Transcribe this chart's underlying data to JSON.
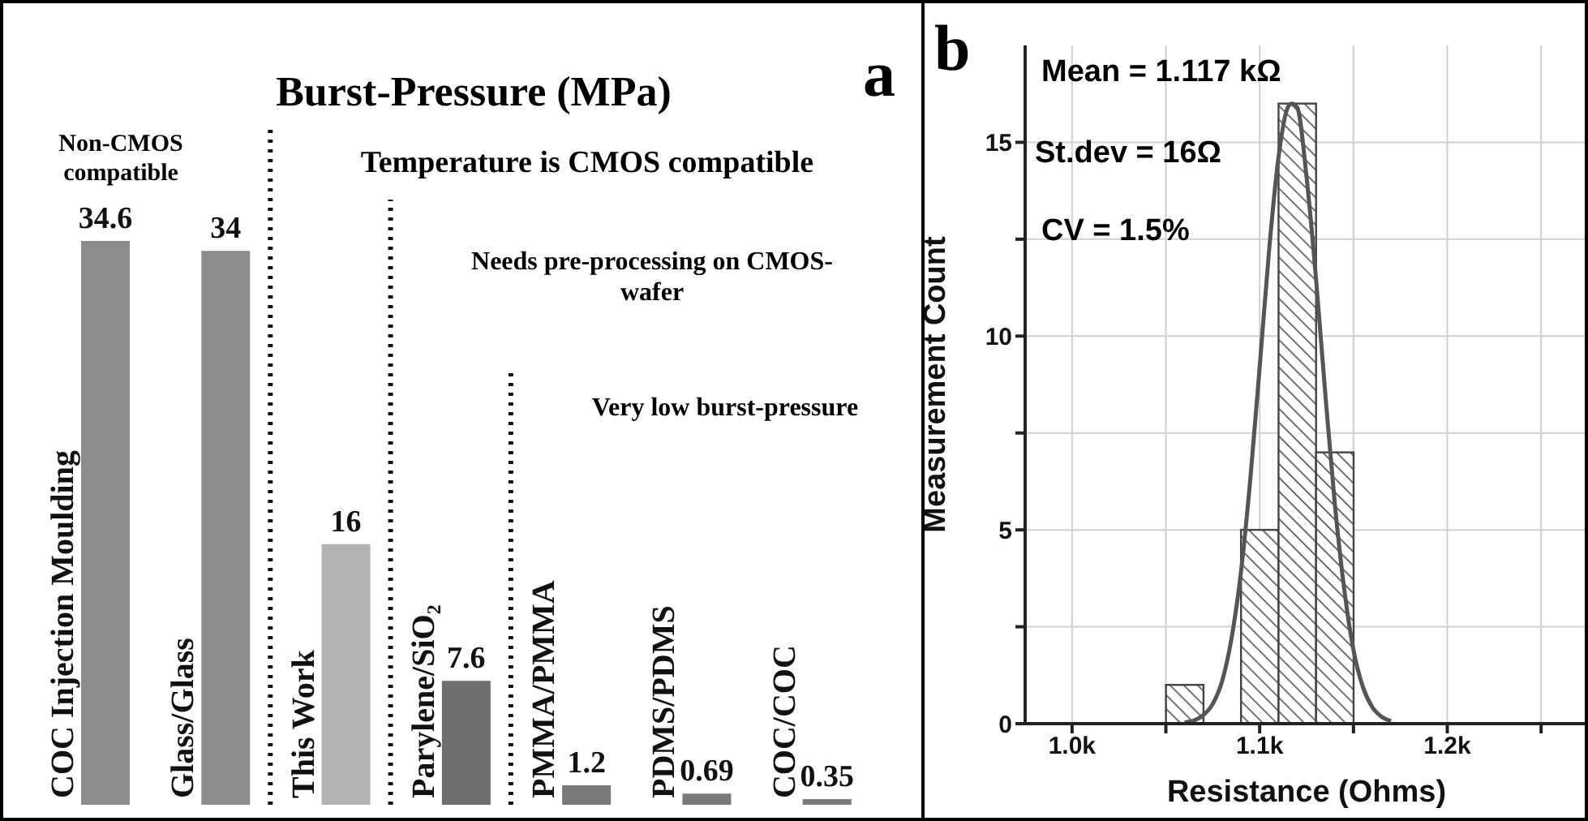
{
  "chart_data": [
    {
      "type": "bar",
      "title": "Burst-Pressure (MPa)",
      "categories": [
        "COC Injection Moulding",
        "Glass/Glass",
        "This Work",
        "Parylene/SiO₂",
        "PMMA/PMMA",
        "PDMS/PDMS",
        "COC/COC"
      ],
      "values": [
        34.6,
        34,
        16,
        7.6,
        1.2,
        0.69,
        0.35
      ],
      "colors": [
        "#8c8c8c",
        "#8c8c8c",
        "#b4b4b4",
        "#6e6e6e",
        "#7a7a7a",
        "#7a7a7a",
        "#7a7a7a"
      ],
      "data_labels": true,
      "ref_lines": [
        {
          "axis": "x",
          "value": "This Work",
          "line_style": "dotted",
          "color": "#111111"
        },
        {
          "axis": "x",
          "value": "Parylene/SiO₂",
          "line_style": "dotted",
          "color": "#111111"
        },
        {
          "axis": "x",
          "value": "PMMA/PMMA",
          "line_style": "dotted",
          "color": "#111111"
        }
      ],
      "annotations": [
        "a",
        "Non-CMOS compatible",
        "Temperature is CMOS compatible",
        "Needs pre-processing on CMOS-wafer",
        "Very low burst-pressure"
      ]
    },
    {
      "type": "histogram",
      "xlabel": "Resistance  (Ohms)",
      "ylabel": "Measurement Count",
      "bins": [
        1050,
        1070,
        1090,
        1110,
        1130,
        1150
      ],
      "values": [
        1,
        0,
        5,
        16,
        7
      ],
      "color": "#444444",
      "series": [
        {
          "type": "line",
          "color": "#555555",
          "x": [
            1060,
            1065,
            1070,
            1075,
            1080,
            1085,
            1090,
            1095,
            1100,
            1105,
            1110,
            1115,
            1117,
            1120,
            1125,
            1130,
            1135,
            1140,
            1145,
            1150,
            1155,
            1160,
            1165,
            1170
          ],
          "values": [
            0.03,
            0.08,
            0.22,
            0.51,
            1.1,
            2.2,
            3.9,
            6.3,
            9.2,
            12.2,
            14.6,
            15.9,
            16,
            15.9,
            14.1,
            11.5,
            8.5,
            5.7,
            3.5,
            1.9,
            0.95,
            0.43,
            0.18,
            0.07
          ]
        }
      ],
      "xlim": [
        975,
        1275
      ],
      "xticks": [
        {
          "value": 1000,
          "label": "1.0k"
        },
        {
          "value": 1050,
          "label": null
        },
        {
          "value": 1100,
          "label": "1.1k"
        },
        {
          "value": 1150,
          "label": null
        },
        {
          "value": 1200,
          "label": "1.2k"
        },
        {
          "value": 1250,
          "label": null
        }
      ],
      "ylim": [
        0,
        17.5
      ],
      "yticks": [
        0,
        {
          "value": 2.5,
          "label": null
        },
        5,
        {
          "value": 7.5,
          "label": null
        },
        10,
        {
          "value": 12.5,
          "label": null
        },
        15
      ],
      "grid": true,
      "annotations": [
        "b",
        "Mean = 1.117 kΩ",
        "St.dev = 16Ω",
        "CV = 1.5%"
      ]
    }
  ]
}
